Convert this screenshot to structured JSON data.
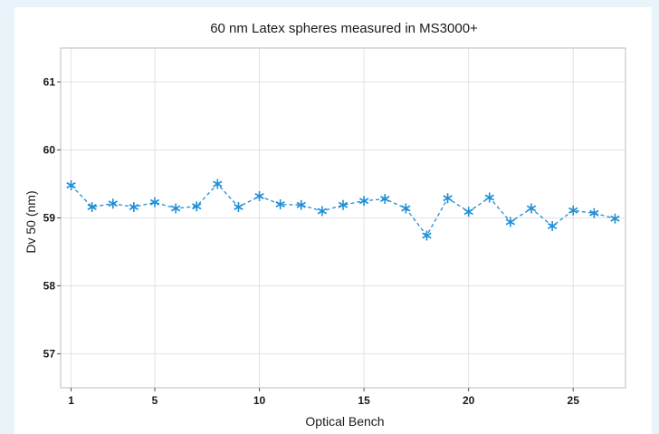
{
  "chart_data": {
    "type": "line",
    "title": "60 nm Latex spheres measured in MS3000+",
    "xlabel": "Optical Bench",
    "ylabel": "Dv 50 (nm)",
    "xlim": [
      0.5,
      27.5
    ],
    "ylim": [
      56.5,
      61.5
    ],
    "xticks": [
      1,
      5,
      10,
      15,
      20,
      25
    ],
    "yticks": [
      57,
      58,
      59,
      60,
      61
    ],
    "grid": true,
    "legend": "none",
    "marker": "asterisk",
    "line_style": "dashed",
    "series": [
      {
        "color": "#1f8fd6",
        "x": [
          1,
          2,
          3,
          4,
          5,
          6,
          7,
          8,
          9,
          10,
          11,
          12,
          13,
          14,
          15,
          16,
          17,
          18,
          19,
          20,
          21,
          22,
          23,
          24,
          25,
          26,
          27
        ],
        "y": [
          59.48,
          59.16,
          59.21,
          59.16,
          59.23,
          59.14,
          59.17,
          59.5,
          59.16,
          59.32,
          59.2,
          59.19,
          59.1,
          59.19,
          59.25,
          59.28,
          59.14,
          58.74,
          59.29,
          59.09,
          59.3,
          58.94,
          59.14,
          58.88,
          59.11,
          59.07,
          58.99
        ]
      }
    ]
  }
}
